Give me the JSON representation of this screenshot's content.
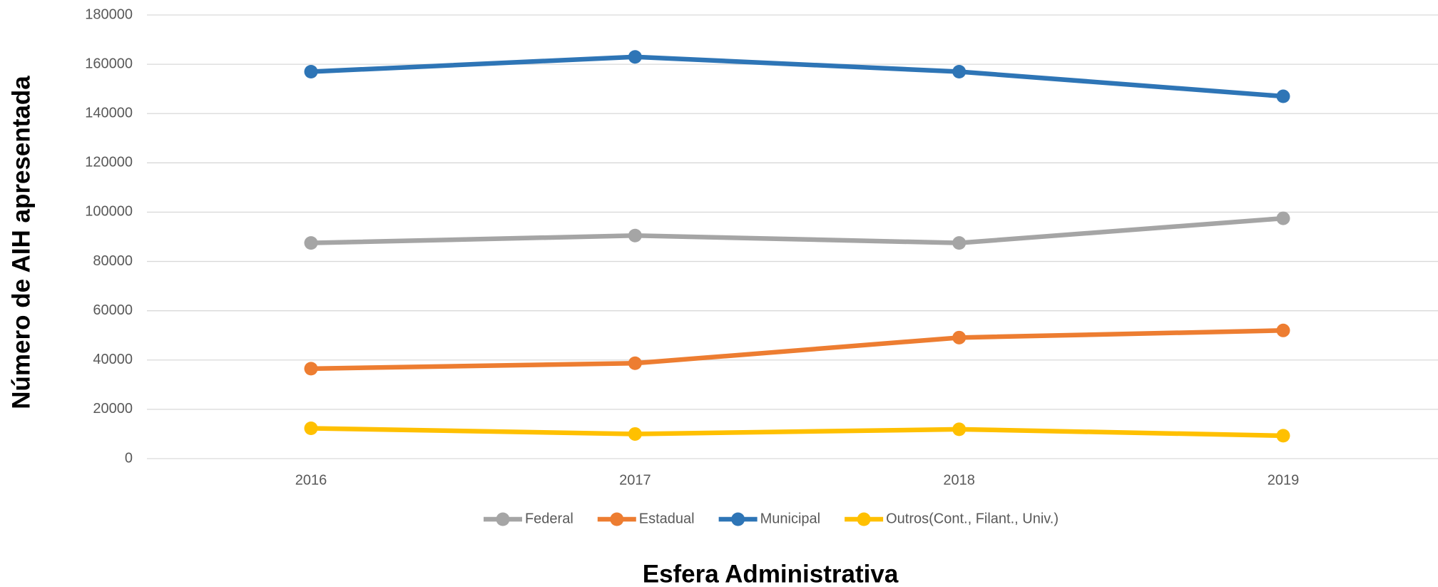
{
  "chart_data": {
    "type": "line",
    "x_label": "Esfera Administrativa",
    "y_label": "Número de AIH apresentada",
    "categories": [
      "2016",
      "2017",
      "2018",
      "2019"
    ],
    "series": [
      {
        "name": "Federal",
        "color": "#a5a5a5",
        "values": [
          87500,
          90500,
          87500,
          97500
        ]
      },
      {
        "name": "Estadual",
        "color": "#ed7d31",
        "values": [
          36500,
          38700,
          49100,
          52000
        ]
      },
      {
        "name": "Municipal",
        "color": "#2e75b6",
        "values": [
          157000,
          163000,
          157000,
          147000
        ]
      },
      {
        "name": "Outros(Cont., Filant., Univ.)",
        "color": "#ffc000",
        "values": [
          12300,
          10000,
          11900,
          9300
        ]
      }
    ],
    "ylim": [
      0,
      180000
    ],
    "yticks": [
      0,
      20000,
      40000,
      60000,
      80000,
      100000,
      120000,
      140000,
      160000,
      180000
    ],
    "grid": true,
    "legend": "bottom"
  }
}
